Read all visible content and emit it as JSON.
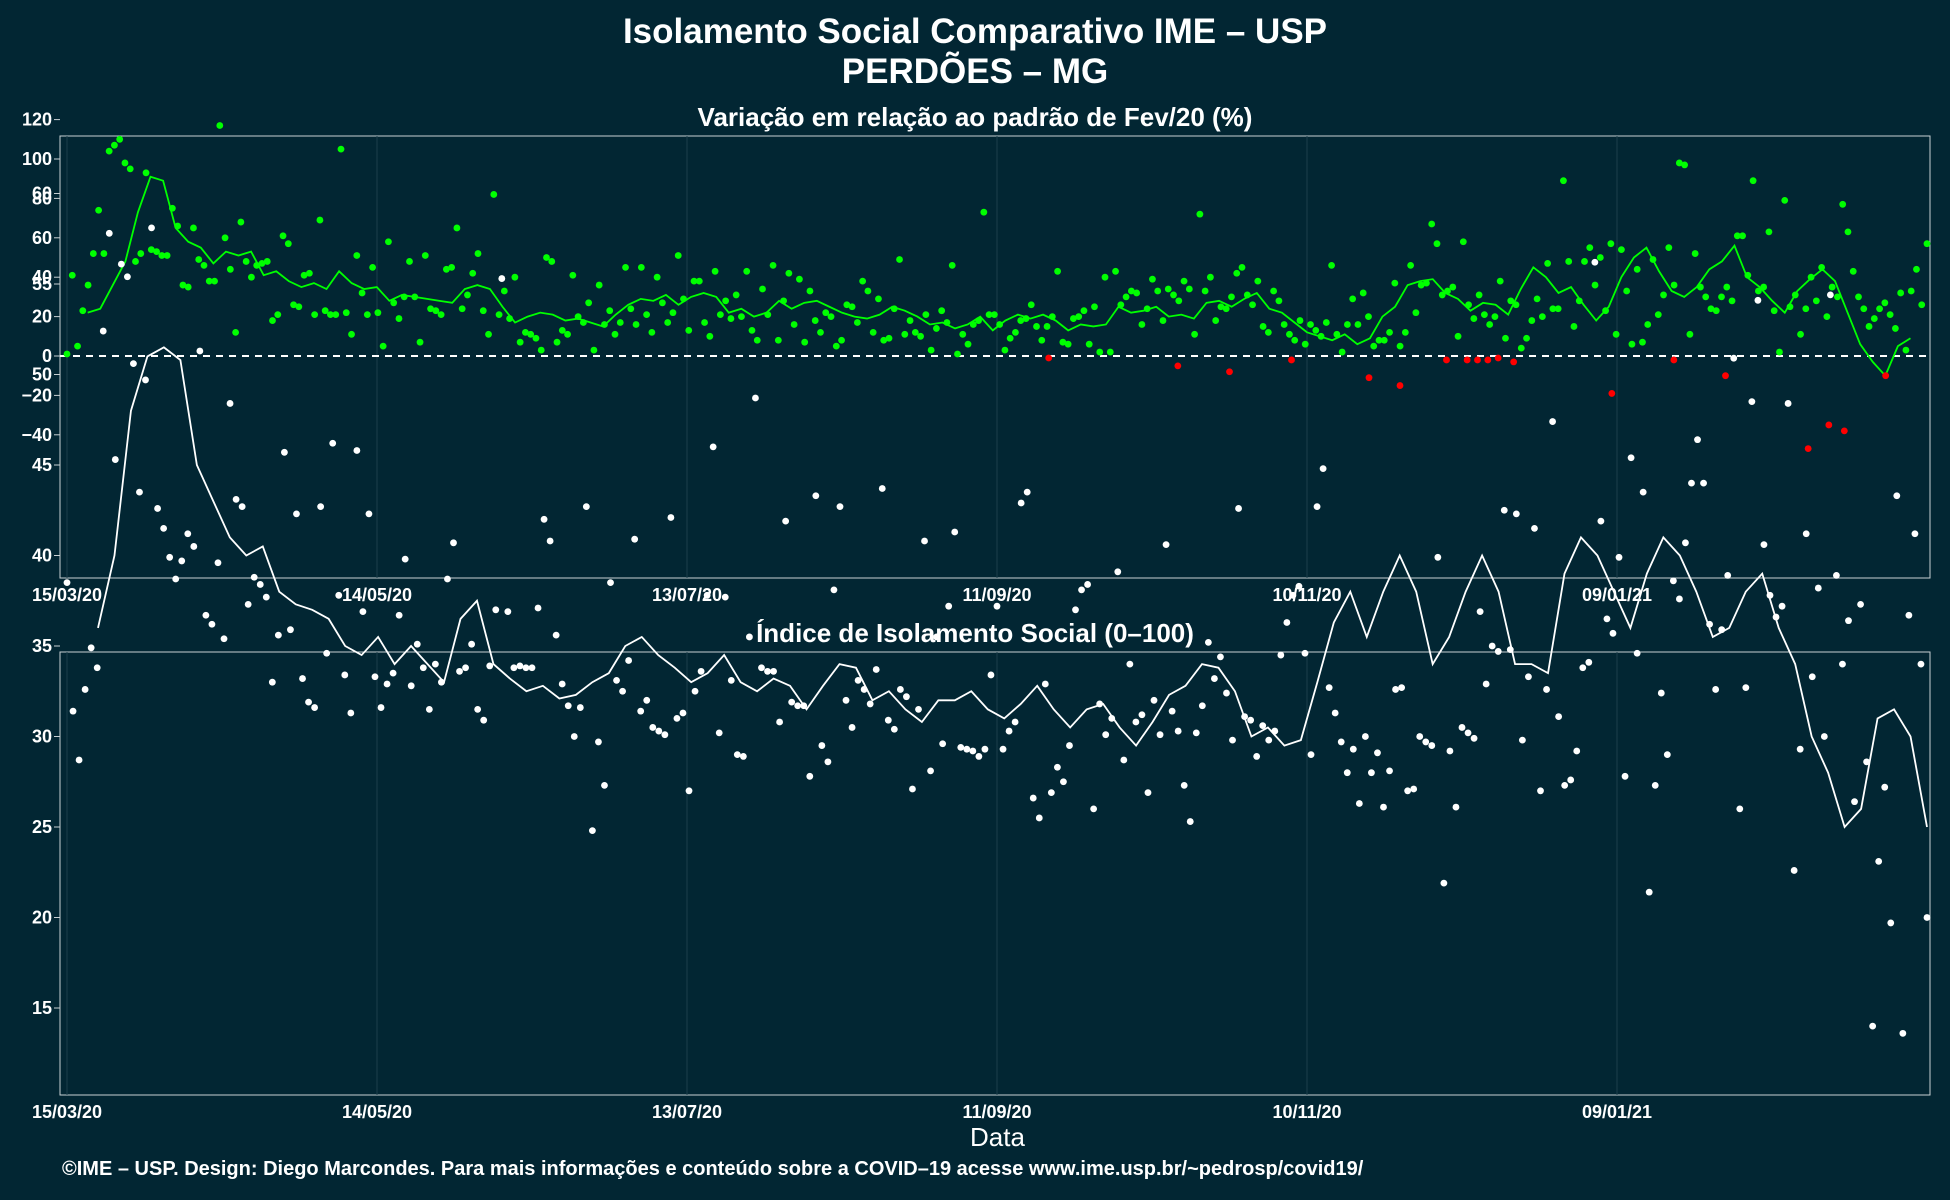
{
  "header": {
    "title": "Isolamento Social Comparativo IME – USP",
    "subtitle": "PERDÕES – MG"
  },
  "footer": {
    "credit": "©IME – USP. Design: Diego Marcondes. Para mais informações e conteúdo sobre a COVID–19 acesse www.ime.usp.br/~pedrosp/covid19/"
  },
  "colors": {
    "background": "#022633",
    "positive_points": "#00ff00",
    "negative_points": "#ff0000",
    "index_points": "#ffffff",
    "grid": "#1c3f4b"
  },
  "chart_data": [
    {
      "type": "scatter",
      "title": "Variação em relação ao padrão de Fev/20 (%)",
      "xlabel": "",
      "ylabel": "",
      "x_ticks": [
        "15/03/20",
        "14/05/20",
        "13/07/20",
        "11/09/20",
        "10/11/20",
        "09/01/21"
      ],
      "ylim": [
        -55,
        125
      ],
      "y_ticks": [
        120,
        100,
        80,
        60,
        40,
        20,
        0,
        -20,
        -40
      ],
      "reference_line": 0,
      "start_date": "15/03/20",
      "series": [
        {
          "values": [
            1,
            41,
            5,
            23,
            36,
            52,
            74,
            52,
            104,
            107,
            110,
            98,
            95,
            48,
            52,
            93,
            54,
            53,
            51,
            51,
            75,
            66,
            36,
            35,
            65,
            49,
            46,
            38,
            38,
            117,
            60,
            44,
            12,
            68,
            48,
            40,
            46,
            47,
            48,
            18,
            21,
            61,
            57,
            26,
            25,
            41,
            42,
            21,
            69,
            23,
            21,
            21,
            105,
            22,
            11,
            51,
            32,
            21,
            45,
            22,
            5,
            58,
            27,
            19,
            30,
            48,
            30,
            7,
            51,
            24,
            23,
            21,
            44,
            45,
            65,
            24,
            31,
            42,
            52,
            23,
            11,
            82,
            21,
            33,
            19,
            40,
            7,
            12,
            11,
            9,
            3,
            50,
            48,
            7,
            13,
            11,
            41,
            20,
            17,
            27,
            3,
            36,
            16,
            23,
            11,
            17,
            45,
            24,
            16,
            45,
            21,
            12,
            40,
            27,
            17,
            22,
            51,
            29,
            13,
            38,
            38,
            17,
            10,
            43,
            21,
            28,
            19,
            31,
            20,
            43,
            13,
            8,
            34,
            21,
            46,
            8,
            28,
            42,
            16,
            39,
            7,
            33,
            18,
            12,
            22,
            20,
            5,
            8,
            26,
            25,
            17,
            38,
            33,
            12,
            29,
            8,
            9,
            24,
            49,
            11,
            18,
            12,
            10,
            21,
            3,
            14,
            23,
            17,
            46,
            1,
            11,
            6,
            16,
            18,
            73,
            21,
            21,
            16,
            3,
            9,
            12,
            18,
            19,
            26,
            15,
            8,
            15,
            20,
            43,
            7,
            6,
            19,
            20,
            23,
            6,
            25,
            2,
            40,
            2,
            43,
            26,
            30,
            33,
            32,
            16,
            24,
            39,
            33,
            18,
            34,
            31,
            28,
            38,
            34,
            11,
            72,
            33,
            40,
            18,
            25,
            24,
            30,
            42,
            45,
            31,
            26,
            38,
            15,
            12,
            33,
            28,
            16,
            11,
            8,
            18,
            6,
            16,
            13,
            10,
            17,
            46,
            11,
            2,
            16,
            29,
            16,
            32,
            20,
            5,
            8,
            8,
            12,
            37,
            5,
            12,
            46,
            22,
            36,
            37,
            67,
            57,
            31,
            33,
            35,
            10,
            58,
            26,
            19,
            31,
            21,
            16,
            20,
            38,
            9,
            28,
            26,
            4,
            9,
            18,
            29,
            20,
            47,
            24,
            24,
            89,
            48,
            15,
            28,
            48,
            55,
            36,
            50,
            23,
            57,
            11,
            54,
            33,
            6,
            44,
            7,
            16,
            49,
            21,
            31,
            55,
            36,
            98,
            97,
            11,
            52,
            35,
            30,
            24,
            23,
            30,
            35,
            28,
            61,
            61,
            41,
            89,
            33,
            35,
            63,
            23,
            2,
            79,
            25,
            31,
            11,
            24,
            40,
            28,
            45,
            20,
            35,
            30,
            77,
            63,
            43,
            30,
            24,
            15,
            19,
            24,
            27,
            21,
            14,
            32,
            3,
            33,
            44,
            26,
            57
          ]
        },
        {
          "values": [
            -1,
            -5,
            -8,
            -2,
            -11,
            -15,
            -2,
            -2,
            -2,
            -2,
            -1,
            -3,
            -19,
            -2,
            -10,
            -47,
            -35,
            -38,
            -10
          ]
        },
        {
          "values": [
            22,
            24,
            36,
            48,
            73,
            91,
            89,
            65,
            58,
            55,
            47,
            53,
            51,
            53,
            41,
            43,
            38,
            35,
            37,
            34,
            43,
            37,
            34,
            35,
            28,
            31,
            30,
            29,
            28,
            27,
            34,
            36,
            34,
            25,
            17,
            20,
            22,
            21,
            18,
            19,
            17,
            15,
            21,
            26,
            29,
            28,
            31,
            26,
            30,
            32,
            30,
            22,
            24,
            20,
            22,
            28,
            24,
            27,
            28,
            25,
            22,
            20,
            19,
            21,
            25,
            23,
            20,
            16,
            17,
            14,
            16,
            20,
            13,
            18,
            21,
            19,
            21,
            18,
            13,
            16,
            15,
            16,
            25,
            22,
            23,
            25,
            20,
            21,
            19,
            27,
            28,
            25,
            29,
            32,
            24,
            22,
            17,
            12,
            10,
            8,
            11,
            6,
            9,
            20,
            25,
            36,
            38,
            39,
            32,
            29,
            23,
            27,
            26,
            21,
            34,
            45,
            40,
            32,
            35,
            26,
            18,
            25,
            40,
            50,
            55,
            43,
            33,
            30,
            35,
            44,
            48,
            56,
            40,
            35,
            28,
            22,
            33,
            39,
            44,
            38,
            22,
            6,
            -3,
            -10,
            5,
            9
          ]
        }
      ]
    },
    {
      "type": "scatter",
      "title": "Índice de Isolamento Social (0–100)",
      "xlabel": "Data",
      "ylabel": "",
      "x_ticks": [
        "15/03/20",
        "14/05/20",
        "13/07/20",
        "11/09/20",
        "10/11/20",
        "09/01/21"
      ],
      "ylim": [
        11,
        61
      ],
      "y_ticks": [
        60,
        55,
        50,
        45,
        40,
        35,
        30,
        25,
        20,
        15
      ],
      "start_date": "15/03/20",
      "series": [
        {
          "values": [
            38.5,
            31.4,
            28.7,
            32.6,
            34.9,
            33.8,
            52.4,
            57.8,
            45.3,
            56.1,
            55.4,
            50.6,
            43.5,
            49.7,
            58.1,
            42.6,
            41.5,
            39.9,
            38.7,
            39.7,
            41.2,
            40.5,
            51.3,
            36.7,
            36.2,
            39.6,
            35.4,
            48.4,
            43.1,
            42.7,
            37.3,
            38.8,
            38.4,
            37.7,
            33.0,
            35.6,
            45.7,
            35.9,
            42.3,
            33.2,
            31.9,
            31.6,
            42.7,
            34.6,
            46.2,
            37.8,
            33.4,
            31.3,
            45.8,
            36.9,
            42.3,
            33.3,
            31.6,
            32.9,
            33.5,
            36.7,
            39.8,
            32.8,
            35.1,
            33.8,
            31.5,
            34.0,
            33.0,
            38.7,
            40.7,
            33.6,
            33.8,
            35.1,
            31.5,
            30.9,
            33.9,
            37.0,
            55.3,
            36.9,
            33.8,
            33.9,
            33.8,
            33.8,
            37.1,
            42.0,
            40.8,
            35.6,
            32.9,
            31.7,
            30.0,
            31.6,
            42.7,
            24.8,
            29.7,
            27.3,
            38.5,
            33.1,
            32.5,
            34.2,
            40.9,
            31.4,
            32.0,
            30.5,
            30.3,
            30.1,
            42.1,
            31.0,
            31.3,
            27.0,
            32.5,
            33.6,
            37.8,
            46.0,
            30.2,
            37.7,
            33.1,
            29.0,
            28.9,
            35.5,
            48.7,
            33.8,
            33.6,
            33.6,
            30.8,
            41.9,
            31.9,
            31.7,
            31.7,
            27.8,
            43.3,
            29.5,
            28.6,
            38.1,
            42.7,
            32.0,
            30.5,
            33.1,
            32.6,
            31.8,
            33.7,
            43.7,
            30.9,
            30.4,
            32.6,
            32.2,
            27.1,
            31.5,
            40.8,
            28.1,
            35.5,
            29.6,
            37.2,
            41.3,
            29.4,
            29.3,
            29.2,
            28.9,
            29.3,
            33.4,
            37.2,
            29.3,
            30.3,
            30.8,
            42.9,
            43.5,
            26.6,
            25.5,
            32.9,
            26.9,
            28.3,
            27.5,
            29.5,
            37.0,
            38.1,
            38.4,
            26.0,
            31.8,
            30.1,
            31.0,
            39.1,
            28.7,
            34.0,
            30.8,
            31.2,
            26.9,
            32.0,
            30.1,
            40.6,
            31.4,
            30.3,
            27.3,
            25.3,
            30.2,
            31.7,
            35.2,
            33.2,
            34.4,
            32.4,
            29.8,
            42.6,
            31.1,
            30.9,
            28.9,
            30.6,
            29.8,
            30.3,
            34.5,
            36.3,
            37.8,
            38.3,
            34.6,
            29.0,
            42.7,
            44.8,
            32.7,
            31.3,
            29.7,
            28.0,
            29.3,
            26.3,
            30.0,
            28.0,
            29.1,
            26.1,
            28.1,
            32.6,
            32.7,
            27.0,
            27.1,
            30.0,
            29.7,
            29.5,
            39.9,
            21.9,
            29.2,
            26.1,
            30.5,
            30.2,
            29.9,
            36.9,
            32.9,
            35.0,
            34.7,
            42.5,
            34.8,
            42.3,
            29.8,
            33.3,
            41.5,
            27.0,
            32.6,
            47.4,
            31.1,
            27.3,
            27.6,
            29.2,
            33.8,
            34.1,
            56.2,
            41.9,
            36.5,
            35.7,
            39.9,
            27.8,
            45.4,
            34.6,
            43.5,
            21.4,
            27.3,
            32.4,
            29.0,
            38.6,
            37.6,
            40.7,
            44.0,
            46.4,
            44.0,
            36.2,
            32.6,
            35.9,
            38.9,
            50.9,
            26.0,
            32.7,
            48.5,
            54.1,
            40.6,
            37.8,
            36.6,
            37.2,
            48.4,
            22.6,
            29.3,
            41.2,
            33.3,
            38.2,
            30.0,
            54.4,
            38.9,
            34.0,
            36.4,
            26.4,
            37.3,
            28.6,
            14.0,
            23.1,
            27.2,
            19.7,
            43.3,
            13.6,
            36.7,
            41.2,
            34.0,
            20.0
          ]
        },
        {
          "values": [
            36.0,
            40.0,
            48.0,
            51.0,
            51.5,
            50.8,
            45.0,
            43.0,
            41.0,
            40.0,
            40.5,
            38.0,
            37.3,
            37.0,
            36.5,
            35.0,
            34.5,
            35.5,
            34.0,
            35.0,
            34.0,
            33.0,
            36.5,
            37.5,
            34.0,
            33.2,
            32.5,
            32.8,
            32.1,
            32.3,
            33.0,
            33.5,
            35.0,
            35.5,
            34.5,
            33.8,
            33.0,
            33.5,
            34.5,
            33.0,
            32.5,
            33.2,
            32.8,
            31.5,
            32.8,
            34.0,
            33.8,
            32.0,
            32.5,
            31.5,
            30.8,
            32.0,
            32.0,
            32.5,
            31.5,
            31.0,
            31.8,
            32.8,
            31.5,
            30.5,
            31.5,
            31.8,
            30.5,
            29.5,
            30.8,
            32.3,
            32.8,
            34.0,
            33.8,
            32.5,
            30.0,
            30.5,
            29.5,
            29.8,
            33.0,
            36.3,
            38.0,
            35.5,
            38.0,
            40.0,
            38.0,
            34.0,
            35.5,
            38.0,
            40.0,
            38.0,
            34.0,
            34.0,
            33.5,
            39.0,
            41.0,
            40.0,
            38.0,
            36.0,
            39.0,
            41.0,
            40.0,
            38.0,
            35.5,
            36.0,
            38.0,
            39.0,
            36.0,
            34.0,
            30.0,
            28.0,
            25.0,
            26.0,
            31.0,
            31.5,
            30.0,
            25.0
          ]
        }
      ]
    }
  ]
}
